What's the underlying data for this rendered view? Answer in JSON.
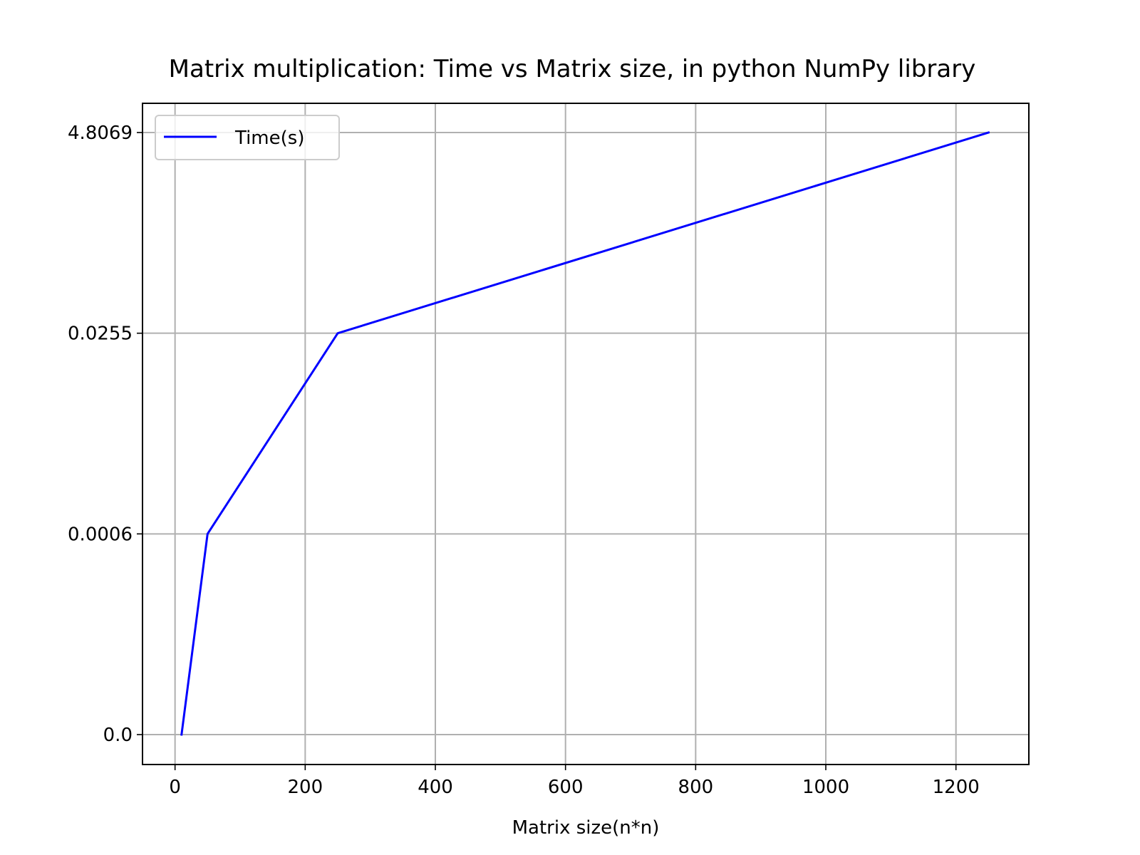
{
  "chart_data": {
    "type": "line",
    "title": "Matrix multiplication: Time vs Matrix size, in python NumPy library",
    "xlabel": "Matrix size(n*n)",
    "ylabel": "",
    "xlim": [
      -50,
      1312
    ],
    "x_ticks": [
      0,
      200,
      400,
      600,
      800,
      1000,
      1200
    ],
    "x_tick_labels": [
      "0",
      "200",
      "400",
      "600",
      "800",
      "1000",
      "1200"
    ],
    "y_axis_mode": "categorical",
    "y_categories": [
      "0.0",
      "0.0006",
      "0.0255",
      "4.8069"
    ],
    "grid": true,
    "legend": {
      "position": "top-left",
      "entries": [
        {
          "label": "Time(s)",
          "color": "#0000ff"
        }
      ]
    },
    "series": [
      {
        "name": "Time(s)",
        "color": "#0000ff",
        "x": [
          10,
          50,
          250,
          1250
        ],
        "y": [
          "0.0",
          "0.0006",
          "0.0255",
          "4.8069"
        ]
      }
    ]
  }
}
